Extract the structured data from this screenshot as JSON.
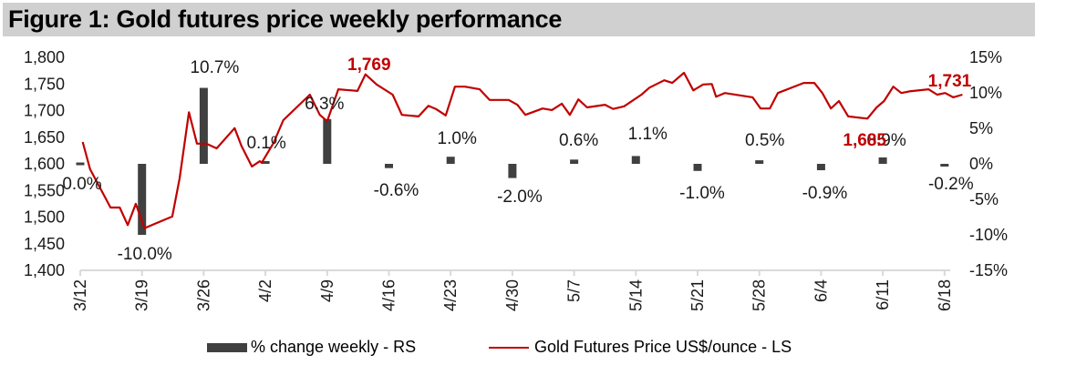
{
  "title": "Figure 1: Gold futures price weekly performance",
  "colors": {
    "title_bg": "#d0d0d0",
    "bar": "#404040",
    "line": "#c00000",
    "axis": "#d9d9d9",
    "annotation": "#c00000"
  },
  "chart_data": {
    "type": "bar+line",
    "title": "Figure 1: Gold futures price weekly performance",
    "categories": [
      "3/12",
      "3/19",
      "3/26",
      "4/2",
      "4/9",
      "4/16",
      "4/23",
      "4/30",
      "5/7",
      "5/14",
      "5/21",
      "5/28",
      "6/4",
      "6/11",
      "6/18"
    ],
    "left_axis": {
      "label": "Gold Futures Price US$/ounce",
      "ylim": [
        1400,
        1800
      ],
      "ticks": [
        1400,
        1450,
        1500,
        1550,
        1600,
        1650,
        1700,
        1750,
        1800
      ],
      "tick_labels": [
        "1,400",
        "1,450",
        "1,500",
        "1,550",
        "1,600",
        "1,650",
        "1,700",
        "1,750",
        "1,800"
      ]
    },
    "right_axis": {
      "label": "% change weekly",
      "ylim": [
        -15,
        15
      ],
      "ticks": [
        -15,
        -10,
        -5,
        0,
        5,
        10,
        15
      ],
      "tick_labels": [
        "-15%",
        "-10%",
        "-5%",
        "0%",
        "5%",
        "10%",
        "15%"
      ]
    },
    "grid": false,
    "legend_position": "bottom",
    "series": [
      {
        "name": "% change weekly - RS",
        "type": "bar",
        "axis": "right",
        "values": [
          0.0,
          -10.0,
          10.7,
          0.1,
          6.3,
          -0.6,
          1.0,
          -2.0,
          0.6,
          1.1,
          -1.0,
          0.5,
          -0.9,
          0.9,
          -0.2
        ],
        "labels": [
          "0.0%",
          "-10.0%",
          "10.7%",
          "0.1%",
          "6.3%",
          "-0.6%",
          "1.0%",
          "-2.0%",
          "0.6%",
          "1.1%",
          "-1.0%",
          "0.5%",
          "-0.9%",
          "0.9%",
          "-0.2%"
        ]
      },
      {
        "name": "Gold Futures Price US$/ounce - LS",
        "type": "line",
        "axis": "left",
        "x_unit": "weeks since 3/12",
        "points": [
          [
            0.04,
            1641
          ],
          [
            0.16,
            1590
          ],
          [
            0.49,
            1518
          ],
          [
            0.64,
            1518
          ],
          [
            0.77,
            1485
          ],
          [
            0.9,
            1525
          ],
          [
            1.04,
            1479
          ],
          [
            1.2,
            1487
          ],
          [
            1.49,
            1501
          ],
          [
            1.61,
            1573
          ],
          [
            1.76,
            1697
          ],
          [
            1.89,
            1638
          ],
          [
            2.04,
            1638
          ],
          [
            2.21,
            1629
          ],
          [
            2.5,
            1667
          ],
          [
            2.61,
            1634
          ],
          [
            2.78,
            1595
          ],
          [
            2.91,
            1605
          ],
          [
            2.94,
            1602
          ],
          [
            3.13,
            1639
          ],
          [
            3.29,
            1682
          ],
          [
            3.72,
            1730
          ],
          [
            3.88,
            1692
          ],
          [
            4.0,
            1680
          ],
          [
            4.18,
            1740
          ],
          [
            4.49,
            1737
          ],
          [
            4.62,
            1768
          ],
          [
            4.8,
            1749
          ],
          [
            5.06,
            1730
          ],
          [
            5.21,
            1692
          ],
          [
            5.48,
            1689
          ],
          [
            5.64,
            1709
          ],
          [
            5.76,
            1703
          ],
          [
            5.92,
            1691
          ],
          [
            6.07,
            1745
          ],
          [
            6.23,
            1745
          ],
          [
            6.47,
            1740
          ],
          [
            6.63,
            1720
          ],
          [
            6.94,
            1720
          ],
          [
            7.08,
            1711
          ],
          [
            7.21,
            1692
          ],
          [
            7.49,
            1704
          ],
          [
            7.64,
            1701
          ],
          [
            7.8,
            1713
          ],
          [
            7.93,
            1692
          ],
          [
            8.07,
            1721
          ],
          [
            8.21,
            1706
          ],
          [
            8.5,
            1711
          ],
          [
            8.63,
            1703
          ],
          [
            8.81,
            1708
          ],
          [
            9.09,
            1730
          ],
          [
            9.22,
            1743
          ],
          [
            9.46,
            1757
          ],
          [
            9.59,
            1752
          ],
          [
            9.78,
            1771
          ],
          [
            9.93,
            1738
          ],
          [
            10.09,
            1749
          ],
          [
            10.23,
            1750
          ],
          [
            10.3,
            1726
          ],
          [
            10.44,
            1733
          ],
          [
            10.89,
            1725
          ],
          [
            11.02,
            1704
          ],
          [
            11.17,
            1704
          ],
          [
            11.3,
            1733
          ],
          [
            11.72,
            1752
          ],
          [
            11.89,
            1752
          ],
          [
            12.02,
            1733
          ],
          [
            12.16,
            1704
          ],
          [
            12.29,
            1718
          ],
          [
            12.44,
            1689
          ],
          [
            12.75,
            1685
          ],
          [
            12.9,
            1706
          ],
          [
            13.02,
            1718
          ],
          [
            13.17,
            1745
          ],
          [
            13.3,
            1733
          ],
          [
            13.43,
            1736
          ],
          [
            13.74,
            1740
          ],
          [
            13.88,
            1730
          ],
          [
            14.01,
            1733
          ],
          [
            14.14,
            1725
          ],
          [
            14.29,
            1730
          ]
        ]
      }
    ],
    "annotations": [
      {
        "text": "1,769",
        "week": 4.62,
        "value": 1769,
        "color": "#c00000"
      },
      {
        "text": "1,685",
        "week": 12.75,
        "value": 1685,
        "color": "#c00000"
      },
      {
        "text": "1,731",
        "week": 14.29,
        "value": 1731,
        "color": "#c00000"
      }
    ]
  },
  "legend": {
    "bar_label": "% change weekly - RS",
    "line_label": "Gold Futures Price US$/ounce - LS"
  }
}
